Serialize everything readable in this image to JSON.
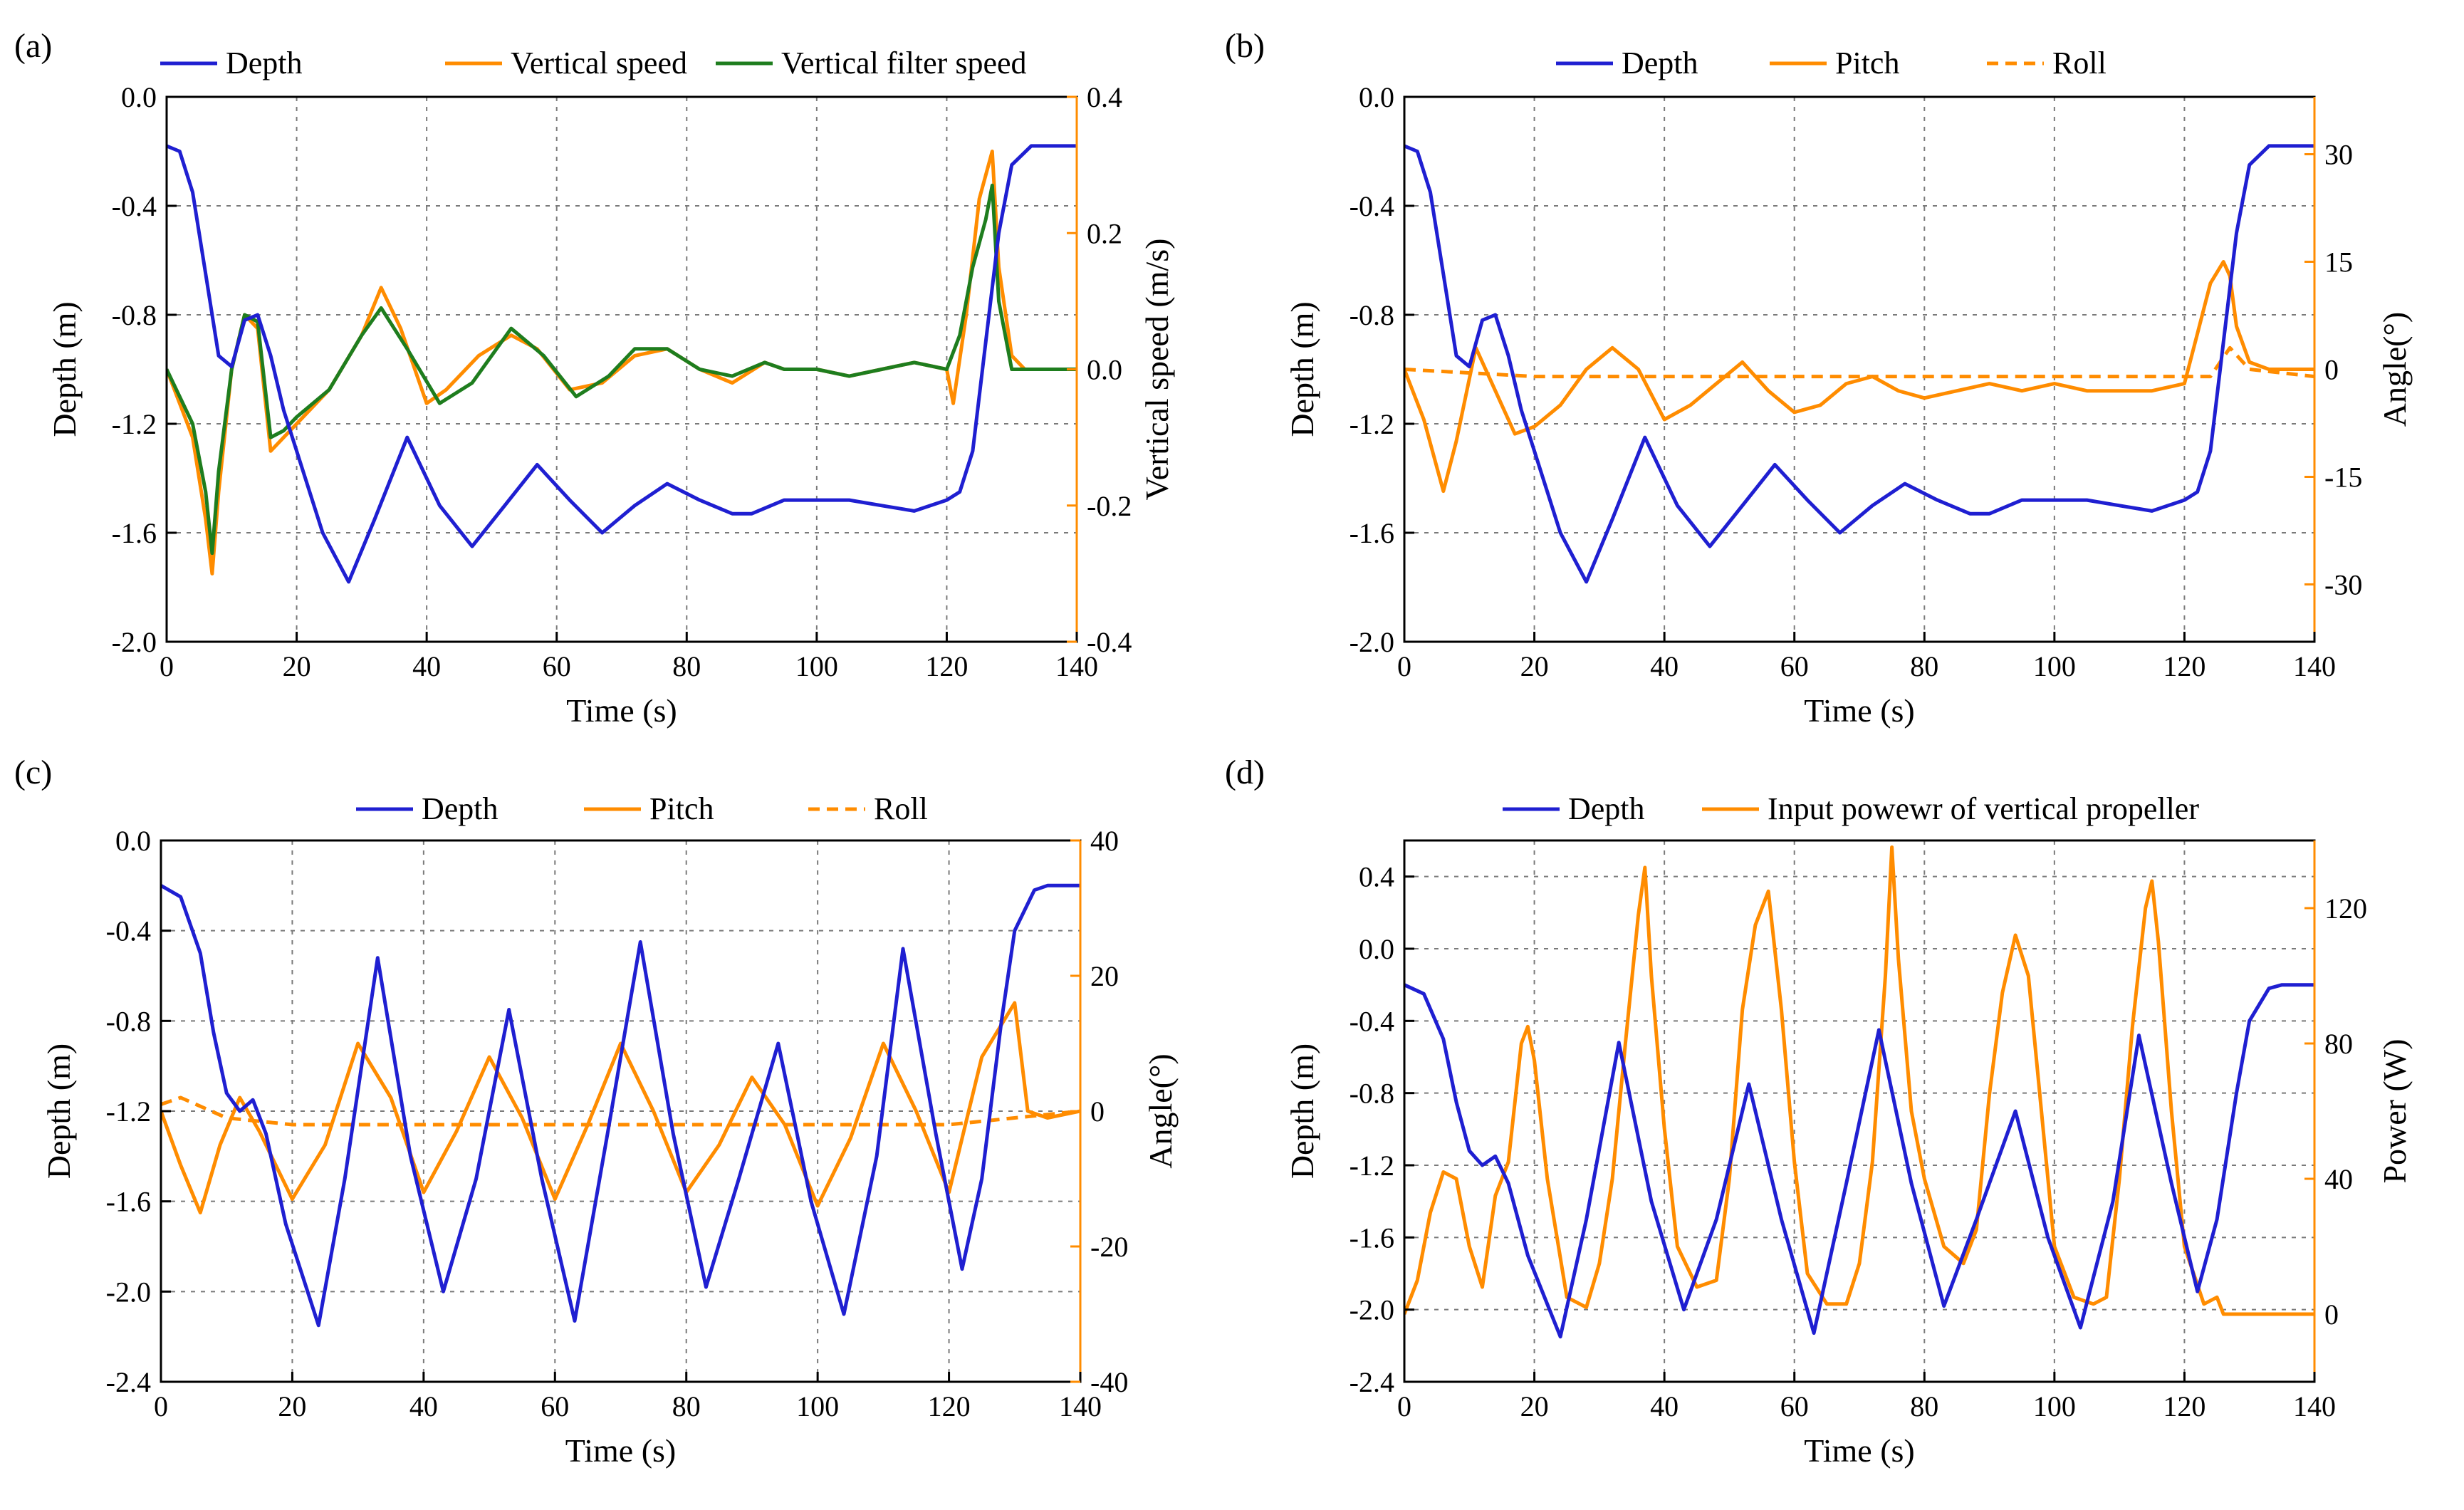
{
  "chart_data": [
    {
      "type": "line",
      "panel_label": "(a)",
      "xlabel": "Time (s)",
      "ylabel": "Depth (m)",
      "y2label": "Vertical speed (m/s)",
      "xlim": [
        0,
        140
      ],
      "ylim": [
        -2.0,
        0.0
      ],
      "y2lim": [
        -0.4,
        0.4
      ],
      "xticks": [
        0,
        20,
        40,
        60,
        80,
        100,
        120,
        140
      ],
      "yticks": [
        -2.0,
        -1.6,
        -1.2,
        -0.8,
        -0.4,
        0.0
      ],
      "y2ticks": [
        -0.4,
        -0.2,
        0.0,
        0.2,
        0.4
      ],
      "xtick_labels": [
        "0",
        "20",
        "40",
        "60",
        "80",
        "100",
        "120",
        "140"
      ],
      "ytick_labels": [
        "-2.0",
        "-1.6",
        "-1.2",
        "-0.8",
        "-0.4",
        "0.0"
      ],
      "y2tick_labels": [
        "-0.4",
        "-0.2",
        "0.0",
        "0.2",
        "0.4"
      ],
      "grid": true,
      "legend_position": "top",
      "series": [
        {
          "name": "Depth",
          "axis": "left",
          "color": "#1f1fd1",
          "dash": "solid",
          "x": [
            0,
            2,
            4,
            6,
            8,
            10,
            12,
            14,
            16,
            18,
            20,
            24,
            28,
            32,
            37,
            42,
            47,
            52,
            57,
            62,
            67,
            72,
            77,
            82,
            87,
            90,
            95,
            100,
            105,
            110,
            115,
            120,
            122,
            124,
            126,
            128,
            130,
            133,
            140
          ],
          "y": [
            -0.18,
            -0.2,
            -0.35,
            -0.65,
            -0.95,
            -0.99,
            -0.82,
            -0.8,
            -0.95,
            -1.15,
            -1.3,
            -1.6,
            -1.78,
            -1.55,
            -1.25,
            -1.5,
            -1.65,
            -1.5,
            -1.35,
            -1.48,
            -1.6,
            -1.5,
            -1.42,
            -1.48,
            -1.53,
            -1.53,
            -1.48,
            -1.48,
            -1.48,
            -1.5,
            -1.52,
            -1.48,
            -1.45,
            -1.3,
            -0.9,
            -0.5,
            -0.25,
            -0.18,
            -0.18
          ]
        },
        {
          "name": "Vertical speed",
          "axis": "right",
          "color": "#ff8c00",
          "dash": "solid",
          "x": [
            0,
            2,
            4,
            6,
            7,
            8,
            10,
            12,
            14,
            16,
            18,
            20,
            25,
            30,
            33,
            36,
            40,
            43,
            48,
            53,
            57,
            62,
            67,
            72,
            77,
            82,
            87,
            92,
            95,
            100,
            105,
            110,
            115,
            120,
            121,
            123,
            125,
            127,
            128,
            130,
            132,
            140
          ],
          "y": [
            0.0,
            -0.05,
            -0.1,
            -0.22,
            -0.3,
            -0.18,
            0.0,
            0.08,
            0.06,
            -0.12,
            -0.1,
            -0.08,
            -0.03,
            0.05,
            0.12,
            0.06,
            -0.05,
            -0.03,
            0.02,
            0.05,
            0.03,
            -0.03,
            -0.02,
            0.02,
            0.03,
            0.0,
            -0.02,
            0.01,
            0.0,
            0.0,
            -0.01,
            0.0,
            0.01,
            0.0,
            -0.05,
            0.08,
            0.25,
            0.32,
            0.15,
            0.02,
            0.0,
            0.0
          ]
        },
        {
          "name": "Vertical filter speed",
          "axis": "right",
          "color": "#1e7d1e",
          "dash": "solid",
          "x": [
            0,
            2,
            4,
            6,
            7,
            8,
            10,
            12,
            14,
            16,
            18,
            20,
            25,
            30,
            33,
            37,
            42,
            47,
            53,
            58,
            63,
            68,
            72,
            77,
            82,
            87,
            92,
            95,
            100,
            105,
            110,
            115,
            120,
            122,
            124,
            126,
            127,
            128,
            130,
            132,
            140
          ],
          "y": [
            0.0,
            -0.04,
            -0.08,
            -0.18,
            -0.27,
            -0.15,
            0.0,
            0.08,
            0.07,
            -0.1,
            -0.09,
            -0.07,
            -0.03,
            0.05,
            0.09,
            0.03,
            -0.05,
            -0.02,
            0.06,
            0.02,
            -0.04,
            -0.01,
            0.03,
            0.03,
            0.0,
            -0.01,
            0.01,
            0.0,
            0.0,
            -0.01,
            0.0,
            0.01,
            0.0,
            0.05,
            0.15,
            0.22,
            0.27,
            0.1,
            0.0,
            0.0,
            0.0
          ]
        }
      ]
    },
    {
      "type": "line",
      "panel_label": "(b)",
      "xlabel": "Time (s)",
      "ylabel": "Depth (m)",
      "y2label": "Angle(°)",
      "xlim": [
        0,
        140
      ],
      "ylim": [
        -2.0,
        0.0
      ],
      "y2lim": [
        -38,
        38
      ],
      "xticks": [
        0,
        20,
        40,
        60,
        80,
        100,
        120,
        140
      ],
      "yticks": [
        -2.0,
        -1.6,
        -1.2,
        -0.8,
        -0.4,
        0.0
      ],
      "y2ticks": [
        -30,
        -15,
        0,
        15,
        30
      ],
      "xtick_labels": [
        "0",
        "20",
        "40",
        "60",
        "80",
        "100",
        "120",
        "140"
      ],
      "ytick_labels": [
        "-2.0",
        "-1.6",
        "-1.2",
        "-0.8",
        "-0.4",
        "0.0"
      ],
      "y2tick_labels": [
        "-30",
        "-15",
        "0",
        "15",
        "30"
      ],
      "grid": true,
      "legend_position": "top",
      "series": [
        {
          "name": "Depth",
          "axis": "left",
          "color": "#1f1fd1",
          "dash": "solid",
          "x": [
            0,
            2,
            4,
            6,
            8,
            10,
            12,
            14,
            16,
            18,
            20,
            24,
            28,
            32,
            37,
            42,
            47,
            52,
            57,
            62,
            67,
            72,
            77,
            82,
            87,
            90,
            95,
            100,
            105,
            110,
            115,
            120,
            122,
            124,
            126,
            128,
            130,
            133,
            140
          ],
          "y": [
            -0.18,
            -0.2,
            -0.35,
            -0.65,
            -0.95,
            -0.99,
            -0.82,
            -0.8,
            -0.95,
            -1.15,
            -1.3,
            -1.6,
            -1.78,
            -1.55,
            -1.25,
            -1.5,
            -1.65,
            -1.5,
            -1.35,
            -1.48,
            -1.6,
            -1.5,
            -1.42,
            -1.48,
            -1.53,
            -1.53,
            -1.48,
            -1.48,
            -1.48,
            -1.5,
            -1.52,
            -1.48,
            -1.45,
            -1.3,
            -0.9,
            -0.5,
            -0.25,
            -0.18,
            -0.18
          ]
        },
        {
          "name": "Pitch",
          "axis": "right",
          "color": "#ff8c00",
          "dash": "solid",
          "x": [
            0,
            3,
            6,
            8,
            11,
            14,
            17,
            20,
            24,
            28,
            32,
            36,
            40,
            44,
            48,
            52,
            56,
            60,
            64,
            68,
            72,
            76,
            80,
            85,
            90,
            95,
            100,
            105,
            110,
            115,
            120,
            122,
            124,
            126,
            127,
            128,
            130,
            133,
            140
          ],
          "y": [
            0,
            -7,
            -17,
            -10,
            3,
            -3,
            -9,
            -8,
            -5,
            0,
            3,
            0,
            -7,
            -5,
            -2,
            1,
            -3,
            -6,
            -5,
            -2,
            -1,
            -3,
            -4,
            -3,
            -2,
            -3,
            -2,
            -3,
            -3,
            -3,
            -2,
            5,
            12,
            15,
            13,
            6,
            1,
            0,
            0
          ]
        },
        {
          "name": "Roll",
          "axis": "right",
          "color": "#ff8c00",
          "dash": "dashed",
          "x": [
            0,
            20,
            40,
            60,
            80,
            100,
            120,
            124,
            127,
            130,
            140
          ],
          "y": [
            0,
            -1,
            -1,
            -1,
            -1,
            -1,
            -1,
            -1,
            3,
            0,
            -1
          ]
        }
      ]
    },
    {
      "type": "line",
      "panel_label": "(c)",
      "xlabel": "Time (s)",
      "ylabel": "Depth (m)",
      "y2label": "Angle(°)",
      "xlim": [
        0,
        140
      ],
      "ylim": [
        -2.4,
        0.0
      ],
      "y2lim": [
        -40,
        40
      ],
      "xticks": [
        0,
        20,
        40,
        60,
        80,
        100,
        120,
        140
      ],
      "yticks": [
        -2.4,
        -2.0,
        -1.6,
        -1.2,
        -0.8,
        -0.4,
        0.0
      ],
      "y2ticks": [
        -40,
        -20,
        0,
        20,
        40
      ],
      "xtick_labels": [
        "0",
        "20",
        "40",
        "60",
        "80",
        "100",
        "120",
        "140"
      ],
      "ytick_labels": [
        "-2.4",
        "-2.0",
        "-1.6",
        "-1.2",
        "-0.8",
        "-0.4",
        "0.0"
      ],
      "y2tick_labels": [
        "-40",
        "-20",
        "0",
        "20",
        "40"
      ],
      "grid": true,
      "legend_position": "top",
      "series": [
        {
          "name": "Depth",
          "axis": "left",
          "color": "#1f1fd1",
          "dash": "solid",
          "x": [
            0,
            3,
            6,
            8,
            10,
            12,
            14,
            16,
            19,
            24,
            28,
            33,
            38,
            43,
            48,
            53,
            58,
            63,
            68,
            73,
            78,
            83,
            88,
            94,
            99,
            104,
            109,
            113,
            118,
            122,
            125,
            128,
            130,
            133,
            135,
            140
          ],
          "y": [
            -0.2,
            -0.25,
            -0.5,
            -0.85,
            -1.12,
            -1.2,
            -1.15,
            -1.3,
            -1.7,
            -2.15,
            -1.5,
            -0.52,
            -1.4,
            -2.0,
            -1.5,
            -0.75,
            -1.5,
            -2.13,
            -1.3,
            -0.45,
            -1.3,
            -1.98,
            -1.5,
            -0.9,
            -1.6,
            -2.1,
            -1.4,
            -0.48,
            -1.3,
            -1.9,
            -1.5,
            -0.8,
            -0.4,
            -0.22,
            -0.2,
            -0.2
          ]
        },
        {
          "name": "Pitch",
          "axis": "right",
          "color": "#ff8c00",
          "dash": "solid",
          "x": [
            0,
            3,
            6,
            9,
            12,
            15,
            20,
            25,
            30,
            35,
            40,
            45,
            50,
            55,
            60,
            65,
            70,
            75,
            80,
            85,
            90,
            95,
            100,
            105,
            110,
            115,
            120,
            125,
            130,
            132,
            135,
            140
          ],
          "y": [
            0,
            -8,
            -15,
            -5,
            2,
            -3,
            -13,
            -5,
            10,
            2,
            -12,
            -3,
            8,
            -1,
            -13,
            -2,
            10,
            0,
            -12,
            -5,
            5,
            -2,
            -14,
            -4,
            10,
            0,
            -12,
            8,
            16,
            0,
            -1,
            0
          ]
        },
        {
          "name": "Roll",
          "axis": "right",
          "color": "#ff8c00",
          "dash": "dashed",
          "x": [
            0,
            3,
            10,
            20,
            40,
            60,
            80,
            100,
            120,
            130,
            140
          ],
          "y": [
            1,
            2,
            -1,
            -2,
            -2,
            -2,
            -2,
            -2,
            -2,
            -1,
            0
          ]
        }
      ]
    },
    {
      "type": "line",
      "panel_label": "(d)",
      "xlabel": "Time (s)",
      "ylabel": "Depth (m)",
      "y2label": "Power (W)",
      "xlim": [
        0,
        140
      ],
      "ylim": [
        -2.4,
        0.6
      ],
      "y2lim": [
        -20,
        140
      ],
      "xticks": [
        0,
        20,
        40,
        60,
        80,
        100,
        120,
        140
      ],
      "yticks": [
        -2.4,
        -2.0,
        -1.6,
        -1.2,
        -0.8,
        -0.4,
        0.0,
        0.4
      ],
      "y2ticks": [
        0,
        40,
        80,
        120
      ],
      "xtick_labels": [
        "0",
        "20",
        "40",
        "60",
        "80",
        "100",
        "120",
        "140"
      ],
      "ytick_labels": [
        "-2.4",
        "-2.0",
        "-1.6",
        "-1.2",
        "-0.8",
        "-0.4",
        "0.0",
        "0.4"
      ],
      "y2tick_labels": [
        "0",
        "40",
        "80",
        "120"
      ],
      "grid": true,
      "legend_position": "top",
      "series": [
        {
          "name": "Depth",
          "axis": "left",
          "color": "#1f1fd1",
          "dash": "solid",
          "x": [
            0,
            3,
            6,
            8,
            10,
            12,
            14,
            16,
            19,
            24,
            28,
            33,
            38,
            43,
            48,
            53,
            58,
            63,
            68,
            73,
            78,
            83,
            88,
            94,
            99,
            104,
            109,
            113,
            118,
            122,
            125,
            128,
            130,
            133,
            135,
            140
          ],
          "y": [
            -0.2,
            -0.25,
            -0.5,
            -0.85,
            -1.12,
            -1.2,
            -1.15,
            -1.3,
            -1.7,
            -2.15,
            -1.5,
            -0.52,
            -1.4,
            -2.0,
            -1.5,
            -0.75,
            -1.5,
            -2.13,
            -1.3,
            -0.45,
            -1.3,
            -1.98,
            -1.5,
            -0.9,
            -1.6,
            -2.1,
            -1.4,
            -0.48,
            -1.3,
            -1.9,
            -1.5,
            -0.8,
            -0.4,
            -0.22,
            -0.2,
            -0.2
          ]
        },
        {
          "name": "Input powewr of vertical propeller",
          "axis": "right",
          "color": "#ff8c00",
          "dash": "solid",
          "x": [
            0,
            2,
            4,
            6,
            8,
            10,
            12,
            14,
            16,
            18,
            19,
            20,
            22,
            25,
            28,
            30,
            32,
            34,
            36,
            37,
            38,
            40,
            42,
            45,
            48,
            50,
            52,
            54,
            56,
            58,
            60,
            62,
            65,
            68,
            70,
            72,
            74,
            75,
            76,
            78,
            80,
            83,
            86,
            88,
            90,
            92,
            94,
            96,
            98,
            100,
            103,
            106,
            108,
            110,
            112,
            114,
            115,
            116,
            118,
            120,
            123,
            125,
            126,
            128,
            140
          ],
          "y": [
            0,
            10,
            30,
            42,
            40,
            20,
            8,
            35,
            45,
            80,
            85,
            75,
            40,
            5,
            2,
            15,
            40,
            80,
            118,
            132,
            100,
            55,
            20,
            8,
            10,
            40,
            90,
            115,
            125,
            90,
            45,
            12,
            3,
            3,
            15,
            45,
            100,
            138,
            105,
            60,
            40,
            20,
            15,
            25,
            65,
            95,
            112,
            100,
            60,
            20,
            5,
            3,
            5,
            40,
            85,
            120,
            128,
            110,
            60,
            20,
            3,
            5,
            0,
            0,
            0
          ]
        }
      ]
    }
  ]
}
